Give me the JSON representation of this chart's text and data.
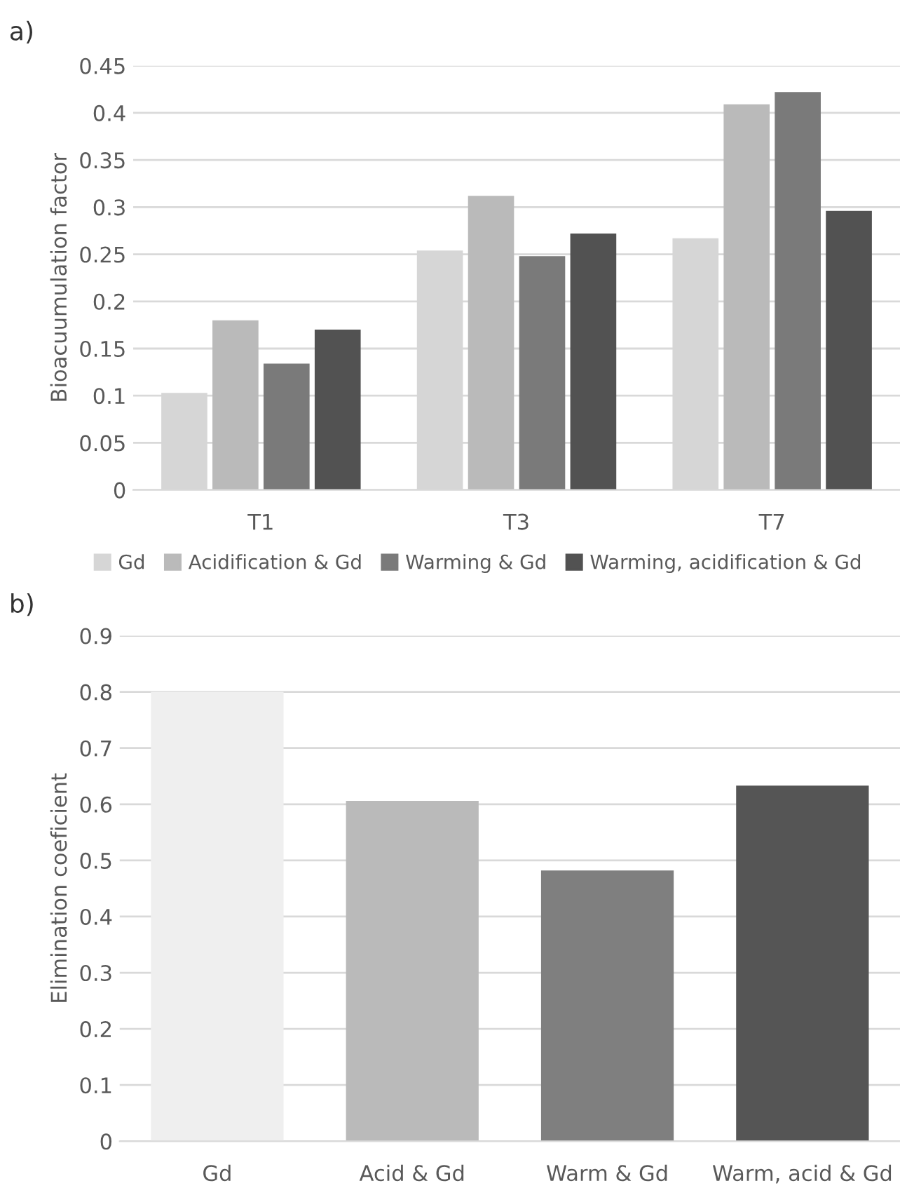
{
  "chart_data": [
    {
      "type": "bar",
      "ylabel": "Bioacuumulation factor",
      "annotations": [
        "a)"
      ],
      "categories": [
        "T1",
        "T3",
        "T7"
      ],
      "series": [
        {
          "name": "Gd",
          "color": "#d6d6d6",
          "values": [
            0.103,
            0.254,
            0.267
          ]
        },
        {
          "name": "Acidification & Gd",
          "color": "#bababa",
          "values": [
            0.18,
            0.312,
            0.409
          ]
        },
        {
          "name": "Warming & Gd",
          "color": "#7a7a7a",
          "values": [
            0.134,
            0.248,
            0.422
          ]
        },
        {
          "name": "Warming, acidification & Gd",
          "color": "#525252",
          "values": [
            0.17,
            0.272,
            0.296
          ]
        }
      ],
      "ylim": [
        0,
        0.45
      ],
      "yticks": [
        0,
        0.05,
        0.1,
        0.15,
        0.2,
        0.25,
        0.3,
        0.35,
        0.4,
        0.45
      ],
      "grid": "y",
      "legend": "bottom"
    },
    {
      "type": "bar",
      "ylabel": "Elimination coeficient",
      "annotations": [
        "b)"
      ],
      "categories": [
        "Gd",
        "Acid & Gd",
        "Warm & Gd",
        "Warm, acid & Gd"
      ],
      "values": [
        0.8,
        0.606,
        0.482,
        0.633
      ],
      "colors": [
        "#efefef",
        "#bababa",
        "#7f7f7f",
        "#555555"
      ],
      "ylim": [
        0,
        0.9
      ],
      "yticks": [
        0,
        0.1,
        0.2,
        0.3,
        0.4,
        0.5,
        0.6,
        0.7,
        0.8,
        0.9
      ],
      "grid": "y"
    }
  ]
}
